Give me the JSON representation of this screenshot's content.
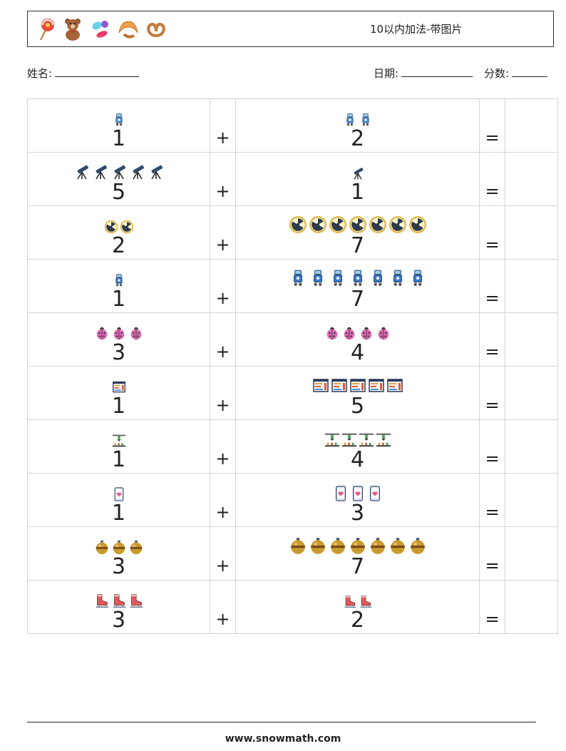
{
  "header": {
    "title": "10以内加法-带图片",
    "icons": [
      "lollipop-icon",
      "teddy-bear-icon",
      "candy-icon",
      "croissant-icon",
      "pretzel-icon"
    ]
  },
  "info": {
    "name_label": "姓名:",
    "date_label": "日期:",
    "score_label": "分数:"
  },
  "operators": {
    "plus": "+",
    "equals": "="
  },
  "problems": [
    {
      "a": 1,
      "b": 2,
      "icon": "robot-icon",
      "color": "#4a90d9"
    },
    {
      "a": 5,
      "b": 1,
      "icon": "telescope-icon",
      "color": "#2f4a6a"
    },
    {
      "a": 2,
      "b": 7,
      "icon": "radiation-icon",
      "color": "#e0b13a"
    },
    {
      "a": 1,
      "b": 7,
      "icon": "robot-icon",
      "color": "#3a7ac8"
    },
    {
      "a": 3,
      "b": 4,
      "icon": "ladybug-icon",
      "color": "#e06bb5"
    },
    {
      "a": 1,
      "b": 5,
      "icon": "chart-board-icon",
      "color": "#e6a23c"
    },
    {
      "a": 1,
      "b": 4,
      "icon": "lab-machine-icon",
      "color": "#4aa05a"
    },
    {
      "a": 1,
      "b": 3,
      "icon": "phone-heart-icon",
      "color": "#e85a8a"
    },
    {
      "a": 3,
      "b": 7,
      "icon": "ornament-icon",
      "color": "#c99a2e"
    },
    {
      "a": 3,
      "b": 2,
      "icon": "ice-skate-icon",
      "color": "#e05a5a"
    }
  ],
  "footer": {
    "url": "www.snowmath.com"
  }
}
